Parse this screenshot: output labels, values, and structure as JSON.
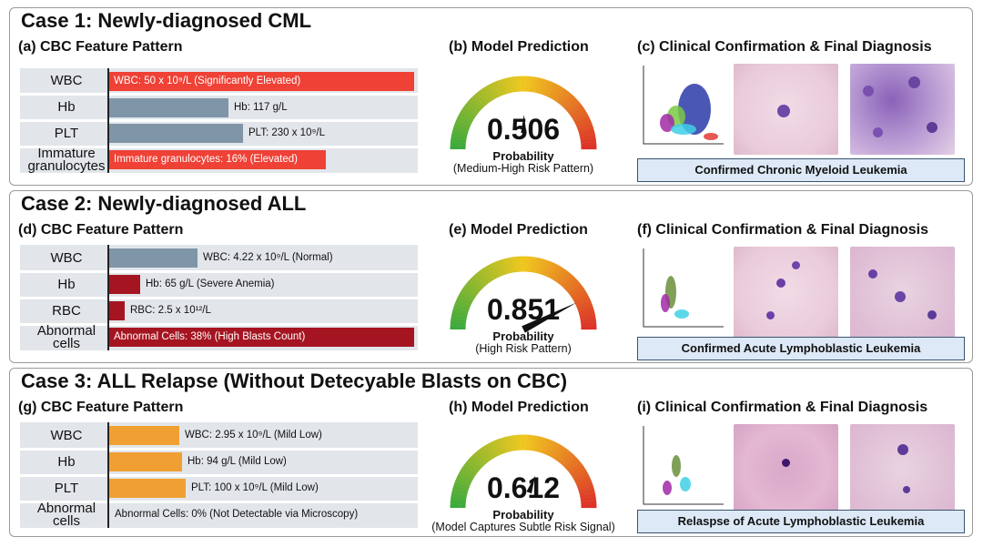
{
  "cases": [
    {
      "title": "Case 1: Newly-diagnosed CML",
      "cbc_title": "(a) CBC Feature Pattern",
      "pred_title": "(b) Model Prediction",
      "clin_title": "(c) Clinical Confirmation & Final Diagnosis",
      "rows": [
        {
          "label": "WBC",
          "text": "WBC: 50 x 10⁹/L (Significantly Elevated)",
          "fraction": 1.0,
          "color": "#ef4136"
        },
        {
          "label": "Hb",
          "text": "Hb: 117 g/L",
          "fraction": 0.39,
          "color": "#7f95a8"
        },
        {
          "label": "PLT",
          "text": "PLT: 230 x 10⁹/L",
          "fraction": 0.44,
          "color": "#7f95a8"
        },
        {
          "label": "Immature granulocytes",
          "text": "Immature granulocytes: 16% (Elevated)",
          "fraction": 0.71,
          "color": "#ef4136"
        }
      ],
      "probability": "0.506",
      "prob_label": "Probability",
      "risk": "(Medium-High Risk Pattern)",
      "diagnosis": "Confirmed Chronic Myeloid Leukemia"
    },
    {
      "title": "Case 2: Newly-diagnosed ALL",
      "cbc_title": "(d) CBC Feature Pattern",
      "pred_title": "(e) Model Prediction",
      "clin_title": "(f) Clinical Confirmation & Final Diagnosis",
      "rows": [
        {
          "label": "WBC",
          "text": "WBC: 4.22 x 10⁹/L (Normal)",
          "fraction": 0.29,
          "color": "#7f95a8"
        },
        {
          "label": "Hb",
          "text": "Hb: 65 g/L (Severe Anemia)",
          "fraction": 0.1,
          "color": "#a51521"
        },
        {
          "label": "RBC",
          "text": "RBC: 2.5 x 10¹²/L",
          "fraction": 0.05,
          "color": "#a51521"
        },
        {
          "label": "Abnormal cells",
          "text": "Abnormal Cells: 38% (High Blasts Count)",
          "fraction": 1.0,
          "color": "#a51521"
        }
      ],
      "probability": "0.851",
      "prob_label": "Probability",
      "risk": "(High Risk Pattern)",
      "diagnosis": "Confirmed Acute Lymphoblastic Leukemia"
    },
    {
      "title": "Case 3: ALL Relapse (Without Detecyable Blasts on CBC)",
      "cbc_title": "(g) CBC Feature Pattern",
      "pred_title": "(h) Model Prediction",
      "clin_title": "(i) Clinical Confirmation & Final Diagnosis",
      "rows": [
        {
          "label": "WBC",
          "text": "WBC: 2.95 x 10⁹/L (Mild Low)",
          "fraction": 0.23,
          "color": "#f0a033"
        },
        {
          "label": "Hb",
          "text": "Hb: 94 g/L (Mild Low)",
          "fraction": 0.24,
          "color": "#f0a033"
        },
        {
          "label": "PLT",
          "text": "PLT: 100 x 10⁹/L (Mild Low)",
          "fraction": 0.25,
          "color": "#f0a033"
        },
        {
          "label": "Abnormal cells",
          "text": "Abnormal Cells: 0% (Not Detectable via Microscopy)",
          "fraction": 0.0,
          "color": "#f0a033"
        }
      ],
      "probability": "0.612",
      "prob_label": "Probability",
      "risk": "(Model Captures Subtle Risk Signal)",
      "diagnosis": "Relaspse of Acute Lymphoblastic Leukemia"
    }
  ],
  "colors": {
    "grey_bar": "#7f95a8",
    "red_bar": "#ef4136",
    "dark_red_bar": "#a51521",
    "orange_bar": "#f0a033",
    "row_bg": "#e2e6ea",
    "diagnosis_bg": "#dde9f6"
  }
}
